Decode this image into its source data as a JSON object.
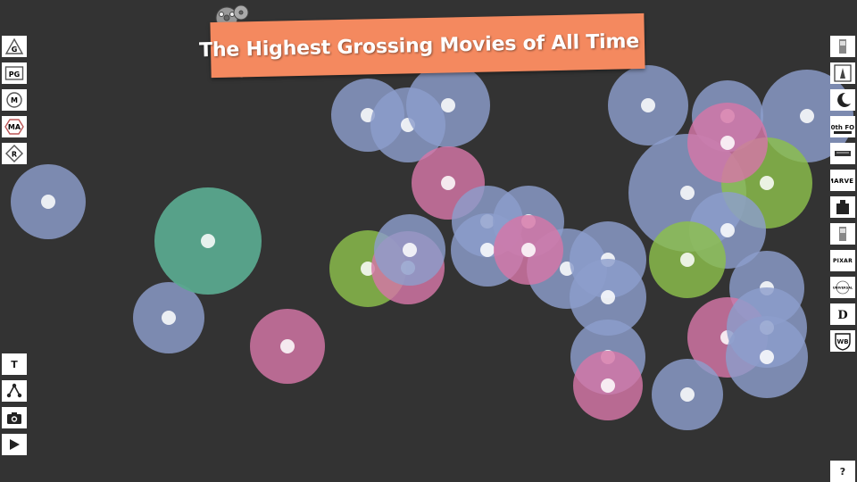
{
  "title": "The Highest Grossing Movies of All Time",
  "colors": {
    "background": "#333333",
    "banner": "#f4895f",
    "bubble_blue": "#8c9dcc",
    "bubble_pink": "#d676a7",
    "bubble_green": "#8cbf4c",
    "bubble_teal": "#5aa88e",
    "center_dot": "#ffffff"
  },
  "rating_filters": [
    {
      "label": "G",
      "icon": "g-rating-icon"
    },
    {
      "label": "PG",
      "icon": "pg-rating-icon"
    },
    {
      "label": "M",
      "icon": "m-rating-icon"
    },
    {
      "label": "MA",
      "icon": "ma-rating-icon"
    },
    {
      "label": "R",
      "icon": "r-rating-icon"
    }
  ],
  "studio_filters": [
    {
      "label": "",
      "icon": "studio-logo-1-icon"
    },
    {
      "label": "",
      "icon": "studio-logo-2-icon"
    },
    {
      "label": "",
      "icon": "dreamworks-logo-icon"
    },
    {
      "label": "20th FOX",
      "icon": "20th-century-fox-logo-icon"
    },
    {
      "label": "",
      "icon": "studio-logo-5-icon"
    },
    {
      "label": "MARVEL",
      "icon": "marvel-logo-icon"
    },
    {
      "label": "",
      "icon": "studio-logo-7-icon"
    },
    {
      "label": "",
      "icon": "studio-logo-8-icon"
    },
    {
      "label": "PIXAR",
      "icon": "pixar-logo-icon"
    },
    {
      "label": "UNIVERSAL",
      "icon": "universal-logo-icon"
    },
    {
      "label": "D",
      "icon": "disney-logo-icon"
    },
    {
      "label": "WB",
      "icon": "warner-bros-logo-icon"
    }
  ],
  "tools": [
    {
      "label": "T",
      "icon": "text-toggle-icon"
    },
    {
      "label": "",
      "icon": "network-icon"
    },
    {
      "label": "",
      "icon": "camera-icon"
    },
    {
      "label": "",
      "icon": "play-icon"
    }
  ],
  "help": {
    "label": "?"
  },
  "movies": [
    {
      "category": "blue"
    },
    {
      "category": "blue"
    },
    {
      "category": "blue"
    },
    {
      "category": "blue"
    },
    {
      "category": "blue"
    },
    {
      "category": "blue"
    },
    {
      "category": "blue"
    },
    {
      "category": "blue"
    },
    {
      "category": "teal"
    },
    {
      "category": "blue"
    },
    {
      "category": "green"
    },
    {
      "category": "pink"
    },
    {
      "category": "pink"
    },
    {
      "category": "blue"
    },
    {
      "category": "pink"
    },
    {
      "category": "blue"
    },
    {
      "category": "green"
    },
    {
      "category": "pink"
    },
    {
      "category": "blue"
    },
    {
      "category": "blue"
    },
    {
      "category": "blue"
    },
    {
      "category": "blue"
    },
    {
      "category": "blue"
    },
    {
      "category": "pink"
    },
    {
      "category": "blue"
    },
    {
      "category": "blue"
    },
    {
      "category": "pink"
    },
    {
      "category": "green"
    },
    {
      "category": "blue"
    },
    {
      "category": "pink"
    },
    {
      "category": "blue"
    },
    {
      "category": "blue"
    },
    {
      "category": "blue"
    },
    {
      "category": "blue"
    },
    {
      "category": "pink"
    },
    {
      "category": "blue"
    },
    {
      "category": "blue"
    },
    {
      "category": "blue"
    },
    {
      "category": "pink"
    }
  ]
}
